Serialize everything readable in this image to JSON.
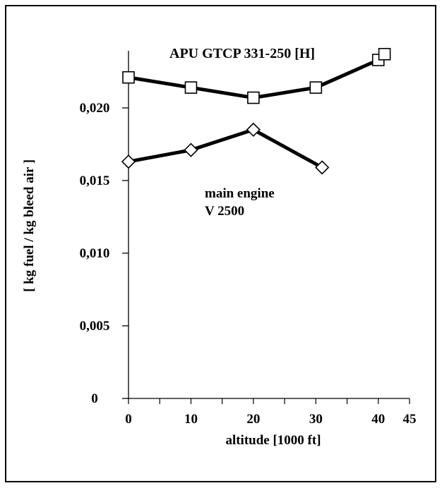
{
  "chart_data": {
    "type": "line",
    "title": "",
    "xlabel": "altitude [1000 ft]",
    "ylabel": "[ kg fuel / kg bleed air ]",
    "xlim": [
      0,
      45
    ],
    "ylim": [
      0,
      0.025
    ],
    "x_ticks": [
      0,
      10,
      20,
      30,
      40,
      45
    ],
    "x_tick_labels": [
      "0",
      "10",
      "20",
      "30",
      "40",
      "45"
    ],
    "y_ticks": [
      0,
      0.005,
      0.01,
      0.015,
      0.02
    ],
    "y_tick_labels": [
      "0",
      "0,005",
      "0,010",
      "0,015",
      "0,020"
    ],
    "grid": false,
    "series": [
      {
        "name": "APU GTCP 331-250 [H]",
        "marker": "square",
        "x": [
          0,
          10,
          20,
          30,
          40,
          41
        ],
        "y": [
          0.0221,
          0.0214,
          0.0207,
          0.0214,
          0.0233,
          0.0237
        ]
      },
      {
        "name": "main engine V 2500",
        "marker": "diamond",
        "x": [
          0,
          10,
          20,
          31
        ],
        "y": [
          0.0163,
          0.0171,
          0.0185,
          0.0159
        ]
      }
    ],
    "annotations": [
      {
        "text": "APU GTCP 331-250 [H]"
      },
      {
        "text": "main engine"
      },
      {
        "text": "V 2500"
      }
    ],
    "colors": {
      "line": "#000000",
      "marker_fill": "#ffffff"
    }
  }
}
